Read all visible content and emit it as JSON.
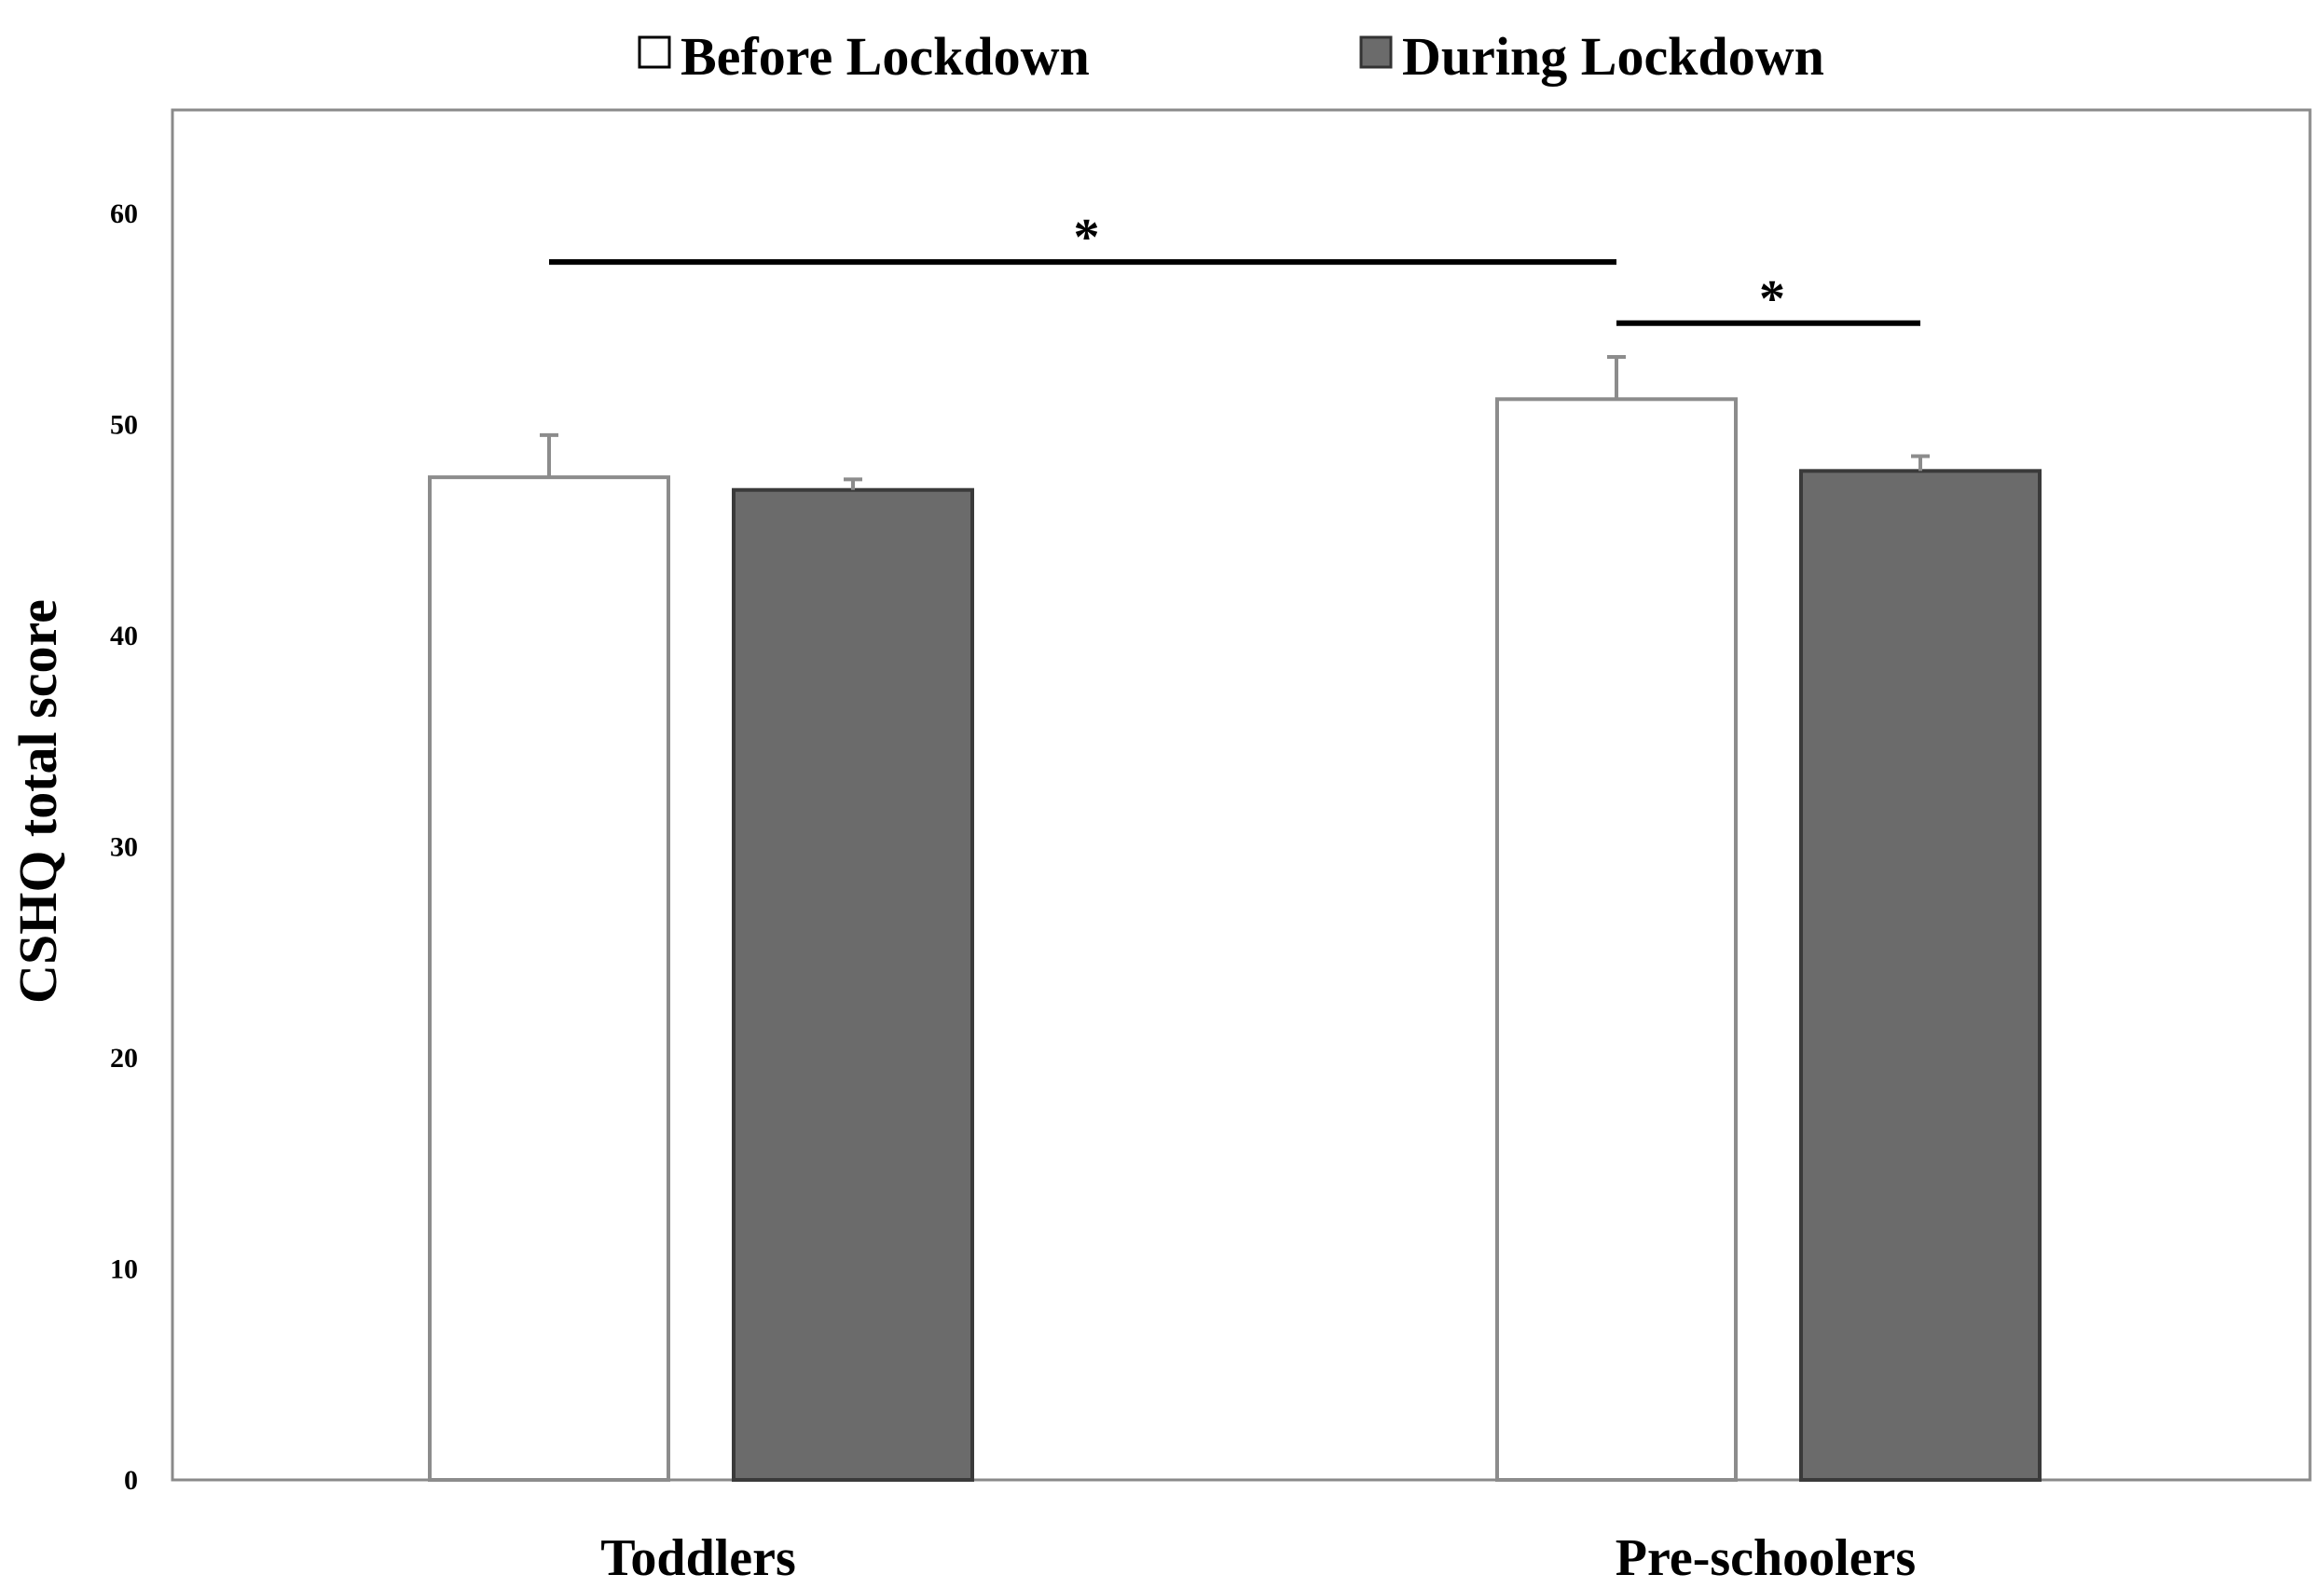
{
  "chart_data": {
    "type": "bar",
    "title": "",
    "xlabel": "",
    "ylabel": "CSHQ total score",
    "ylim": [
      0,
      65
    ],
    "yticks": [
      0,
      10,
      20,
      30,
      40,
      50,
      60
    ],
    "grid": false,
    "legend_placement": "top",
    "categories": [
      "Toddlers",
      "Pre-schoolers"
    ],
    "series": [
      {
        "name": "Before Lockdown",
        "values": [
          47.5,
          51.2
        ],
        "errors": [
          2.0,
          2.0
        ],
        "color": "#ffffff",
        "edge_color": "#8c8c8c"
      },
      {
        "name": "During Lockdown",
        "values": [
          46.9,
          47.8
        ],
        "errors": [
          0.5,
          0.7
        ],
        "color": "#6b6b6b",
        "edge_color": "#3a3a3a"
      }
    ],
    "significance": [
      {
        "label": "*",
        "from": [
          "Toddlers",
          "Before Lockdown"
        ],
        "to": [
          "Pre-schoolers",
          "Before Lockdown"
        ],
        "y": 57.7
      },
      {
        "label": "*",
        "from": [
          "Pre-schoolers",
          "Before Lockdown"
        ],
        "to": [
          "Pre-schoolers",
          "During Lockdown"
        ],
        "y": 54.8
      }
    ]
  }
}
